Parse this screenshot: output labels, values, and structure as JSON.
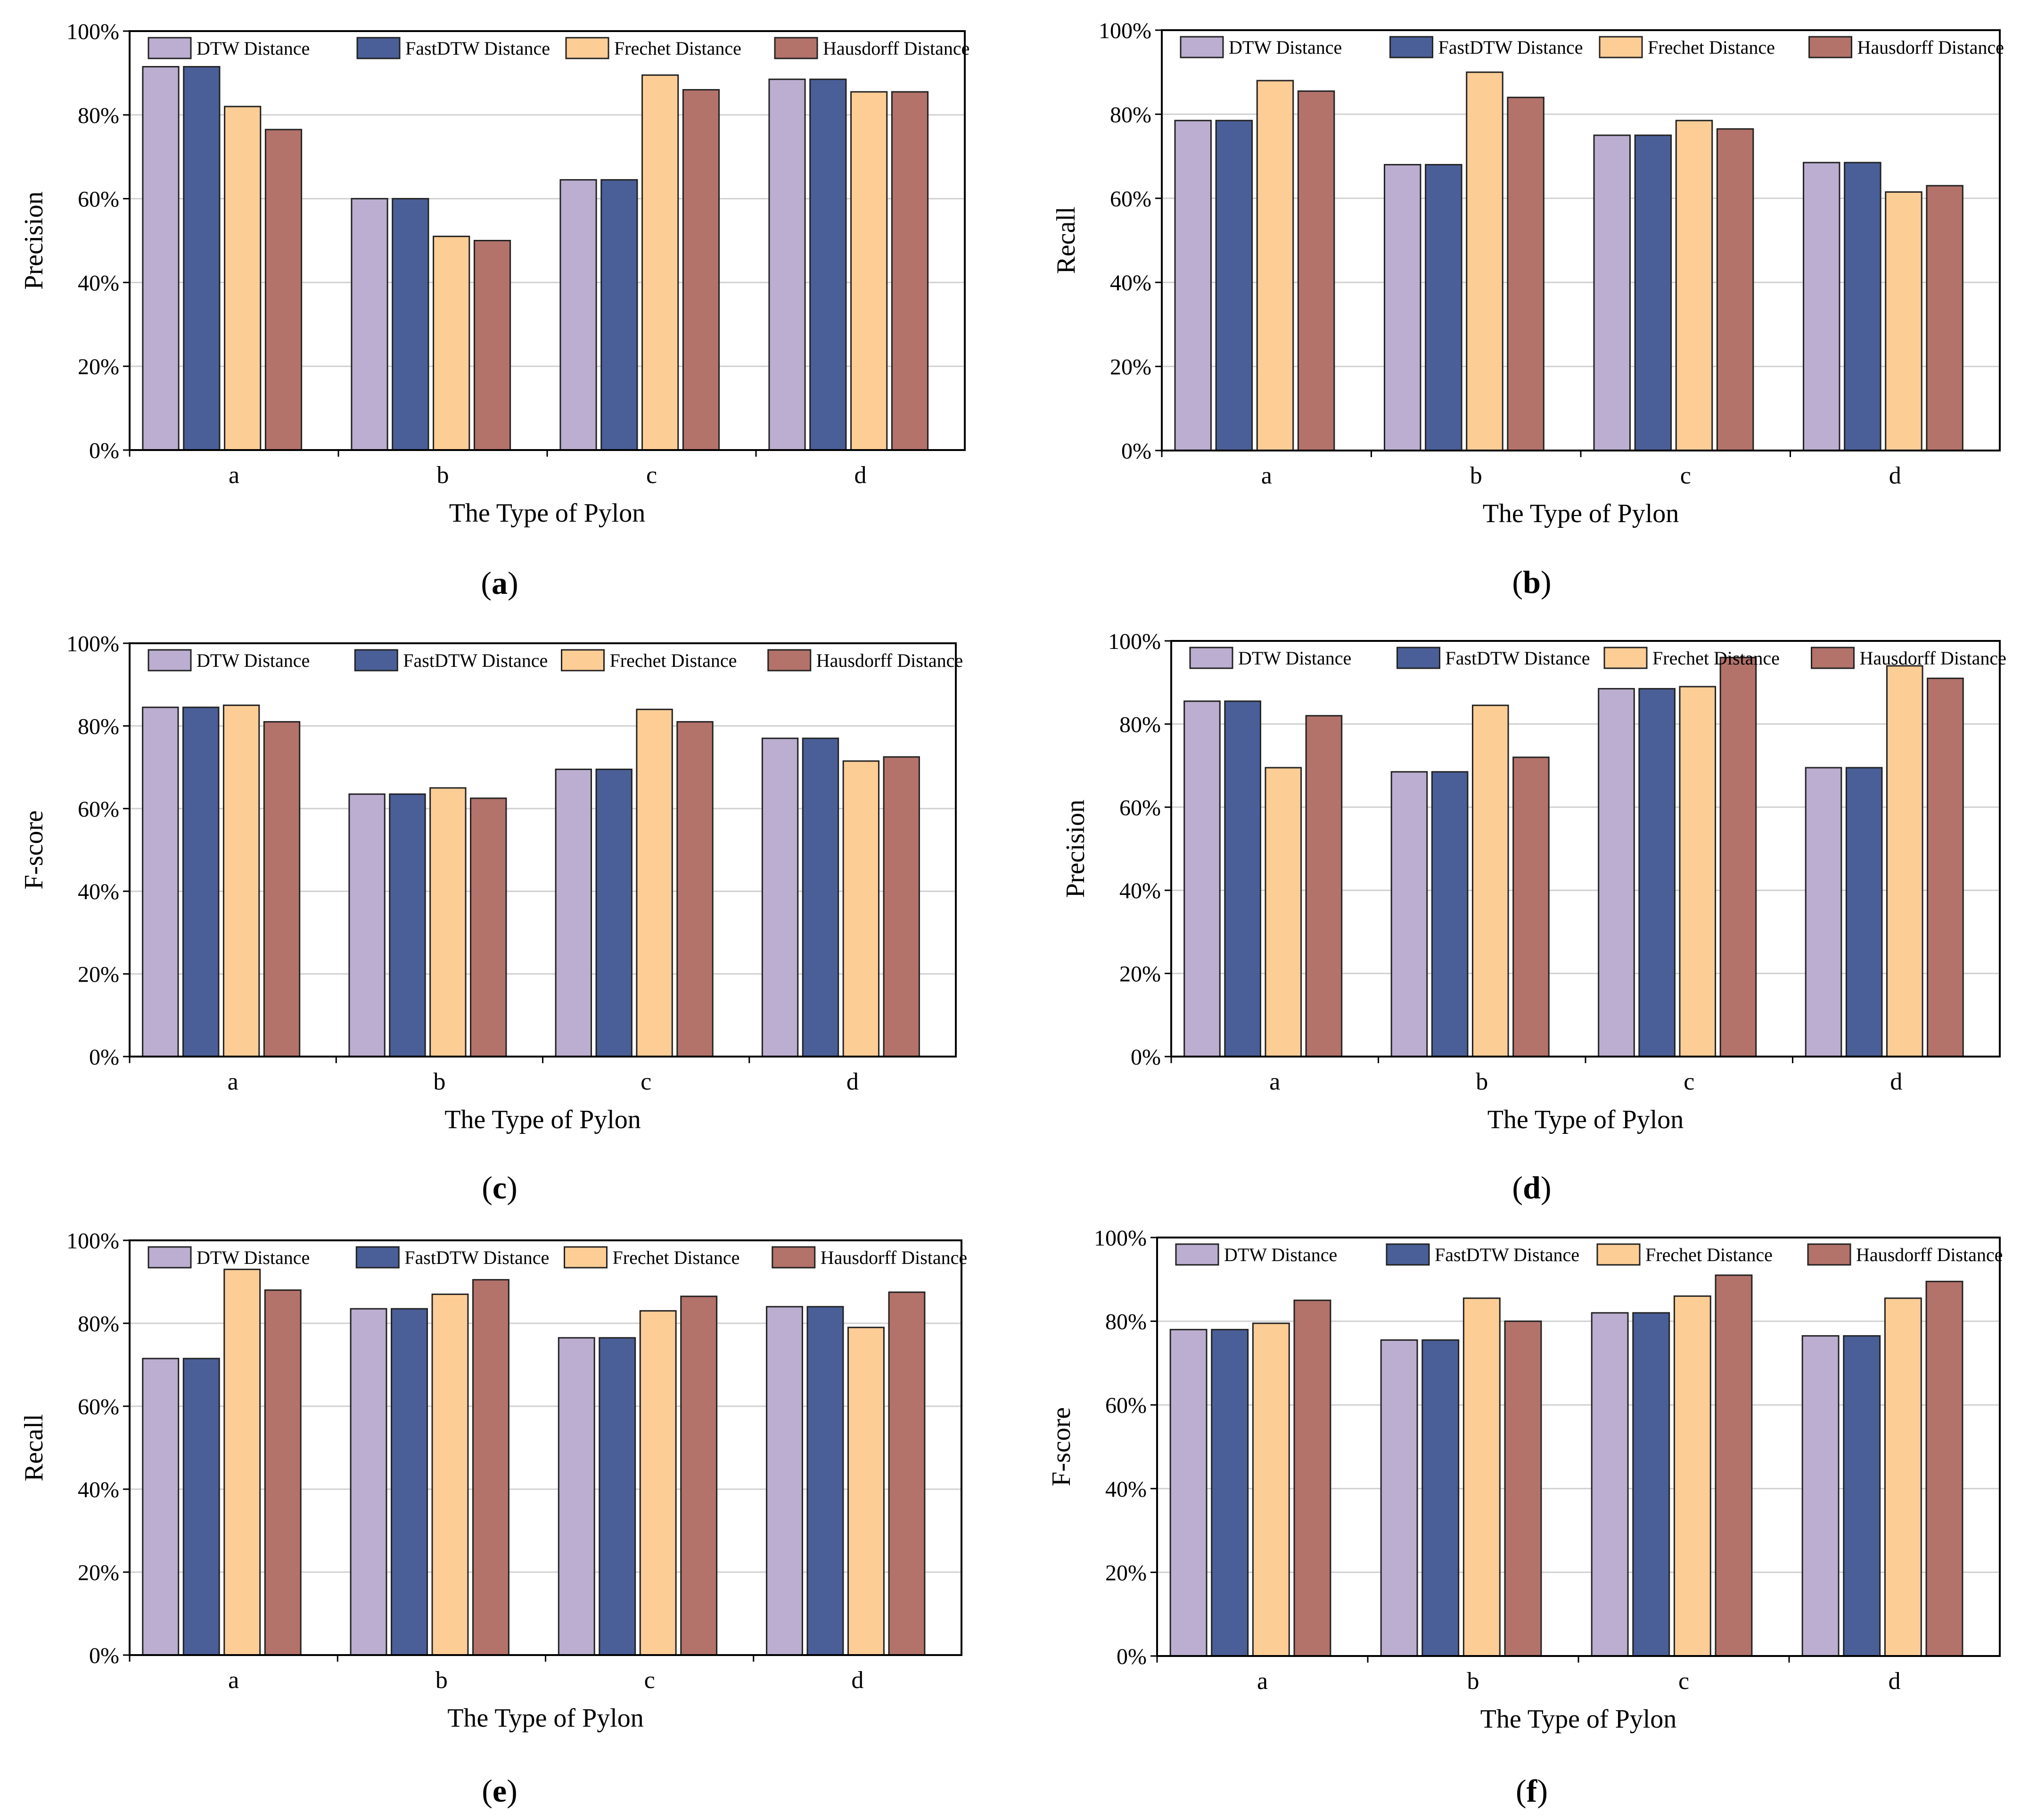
{
  "figure": {
    "series_colors": {
      "DTW Distance": "#bbaed0",
      "FastDTW Distance": "#4a5f98",
      "Frechet Distance": "#fdcd96",
      "Hausdorff Distance": "#b3726a"
    },
    "grid_color": "#d0d0d0",
    "axis_color": "#000000"
  },
  "chart_data": [
    {
      "panel": "(a)",
      "caption_open": "(",
      "caption_letter": "a",
      "caption_close": ")",
      "type": "bar",
      "title": "",
      "xlabel": "The Type of Pylon",
      "ylabel": "Precision",
      "categories": [
        "a",
        "b",
        "c",
        "d"
      ],
      "ylim": [
        0,
        100
      ],
      "yticks": [
        "0%",
        "20%",
        "40%",
        "60%",
        "80%",
        "100%"
      ],
      "grid": true,
      "legend_position": "top",
      "series": [
        {
          "name": "DTW Distance",
          "values": [
            91.5,
            60,
            64.5,
            88.5
          ]
        },
        {
          "name": "FastDTW Distance",
          "values": [
            91.5,
            60,
            64.5,
            88.5
          ]
        },
        {
          "name": "Frechet Distance",
          "values": [
            82,
            51,
            89.5,
            85.5
          ]
        },
        {
          "name": "Hausdorff Distance",
          "values": [
            76.5,
            50,
            86,
            85.5
          ]
        }
      ]
    },
    {
      "panel": "(b)",
      "caption_open": "(",
      "caption_letter": "b",
      "caption_close": ")",
      "type": "bar",
      "title": "",
      "xlabel": "The Type of Pylon",
      "ylabel": "Recall",
      "categories": [
        "a",
        "b",
        "c",
        "d"
      ],
      "ylim": [
        0,
        100
      ],
      "yticks": [
        "0%",
        "20%",
        "40%",
        "60%",
        "80%",
        "100%"
      ],
      "grid": true,
      "legend_position": "top",
      "series": [
        {
          "name": "DTW Distance",
          "values": [
            78.5,
            68,
            75,
            68.5
          ]
        },
        {
          "name": "FastDTW Distance",
          "values": [
            78.5,
            68,
            75,
            68.5
          ]
        },
        {
          "name": "Frechet Distance",
          "values": [
            88,
            90,
            78.5,
            61.5
          ]
        },
        {
          "name": "Hausdorff Distance",
          "values": [
            85.5,
            84,
            76.5,
            63
          ]
        }
      ]
    },
    {
      "panel": "(c)",
      "caption_open": "(",
      "caption_letter": "c",
      "caption_close": ")",
      "type": "bar",
      "title": "",
      "xlabel": "The Type of Pylon",
      "ylabel": "F-score",
      "categories": [
        "a",
        "b",
        "c",
        "d"
      ],
      "ylim": [
        0,
        100
      ],
      "yticks": [
        "0%",
        "20%",
        "40%",
        "60%",
        "80%",
        "100%"
      ],
      "grid": true,
      "legend_position": "top",
      "series": [
        {
          "name": "DTW Distance",
          "values": [
            84.5,
            63.5,
            69.5,
            77
          ]
        },
        {
          "name": "FastDTW Distance",
          "values": [
            84.5,
            63.5,
            69.5,
            77
          ]
        },
        {
          "name": "Frechet Distance",
          "values": [
            85,
            65,
            84,
            71.5
          ]
        },
        {
          "name": "Hausdorff Distance",
          "values": [
            81,
            62.5,
            81,
            72.5
          ]
        }
      ]
    },
    {
      "panel": "(d)",
      "caption_open": "(",
      "caption_letter": "d",
      "caption_close": ")",
      "type": "bar",
      "title": "",
      "xlabel": "The Type of Pylon",
      "ylabel": "Precision",
      "categories": [
        "a",
        "b",
        "c",
        "d"
      ],
      "ylim": [
        0,
        100
      ],
      "yticks": [
        "0%",
        "20%",
        "40%",
        "60%",
        "80%",
        "100%"
      ],
      "grid": true,
      "legend_position": "top",
      "series": [
        {
          "name": "DTW Distance",
          "values": [
            85.5,
            68.5,
            88.5,
            69.5
          ]
        },
        {
          "name": "FastDTW Distance",
          "values": [
            85.5,
            68.5,
            88.5,
            69.5
          ]
        },
        {
          "name": "Frechet Distance",
          "values": [
            69.5,
            84.5,
            89,
            94
          ]
        },
        {
          "name": "Hausdorff Distance",
          "values": [
            82,
            72,
            96,
            91
          ]
        }
      ]
    },
    {
      "panel": "(e)",
      "caption_open": "(",
      "caption_letter": "e",
      "caption_close": ")",
      "type": "bar",
      "title": "",
      "xlabel": "The Type of Pylon",
      "ylabel": "Recall",
      "categories": [
        "a",
        "b",
        "c",
        "d"
      ],
      "ylim": [
        0,
        100
      ],
      "yticks": [
        "0%",
        "20%",
        "40%",
        "60%",
        "80%",
        "100%"
      ],
      "grid": true,
      "legend_position": "top",
      "series": [
        {
          "name": "DTW Distance",
          "values": [
            71.5,
            83.5,
            76.5,
            84
          ]
        },
        {
          "name": "FastDTW Distance",
          "values": [
            71.5,
            83.5,
            76.5,
            84
          ]
        },
        {
          "name": "Frechet Distance",
          "values": [
            93,
            87,
            83,
            79
          ]
        },
        {
          "name": "Hausdorff Distance",
          "values": [
            88,
            90.5,
            86.5,
            87.5
          ]
        }
      ]
    },
    {
      "panel": "(f)",
      "caption_open": "(",
      "caption_letter": "f",
      "caption_close": ")",
      "type": "bar",
      "title": "",
      "xlabel": "The Type of Pylon",
      "ylabel": "F-score",
      "categories": [
        "a",
        "b",
        "c",
        "d"
      ],
      "ylim": [
        0,
        100
      ],
      "yticks": [
        "0%",
        "20%",
        "40%",
        "60%",
        "80%",
        "100%"
      ],
      "grid": true,
      "legend_position": "top",
      "series": [
        {
          "name": "DTW Distance",
          "values": [
            78,
            75.5,
            82,
            76.5
          ]
        },
        {
          "name": "FastDTW Distance",
          "values": [
            78,
            75.5,
            82,
            76.5
          ]
        },
        {
          "name": "Frechet Distance",
          "values": [
            79.5,
            85.5,
            86,
            85.5
          ]
        },
        {
          "name": "Hausdorff Distance",
          "values": [
            85,
            80,
            91,
            89.5
          ]
        }
      ]
    }
  ]
}
